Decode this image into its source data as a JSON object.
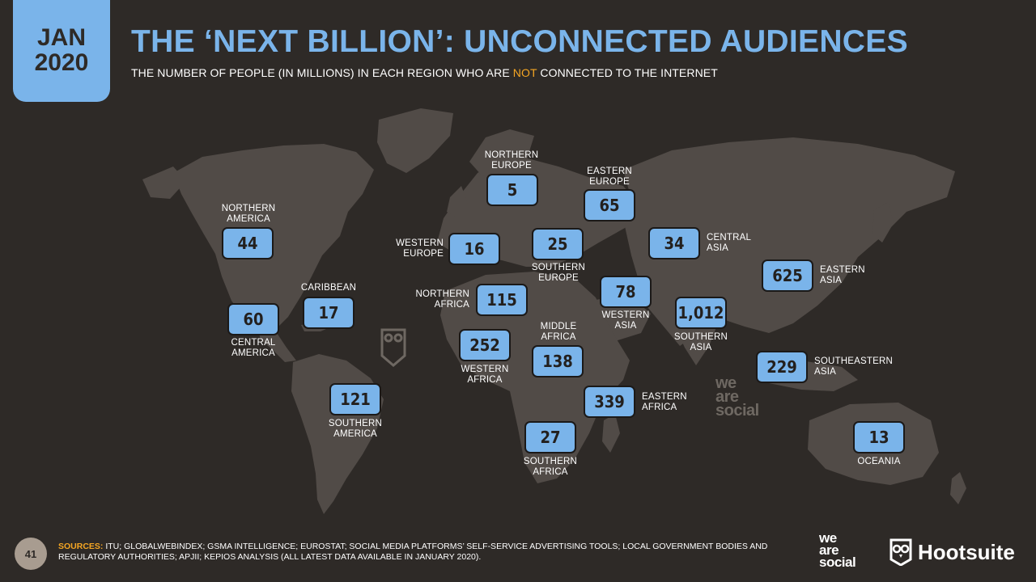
{
  "header": {
    "badge_month": "JAN",
    "badge_year": "2020",
    "title": "THE ‘NEXT BILLION’: UNCONNECTED AUDIENCES",
    "subtitle_pre": "THE NUMBER OF PEOPLE (IN MILLIONS) IN EACH REGION WHO ARE ",
    "subtitle_highlight": "NOT",
    "subtitle_post": " CONNECTED TO THE INTERNET"
  },
  "regions": {
    "northern_europe": {
      "label": "NORTHERN\nEUROPE",
      "value": "5"
    },
    "eastern_europe": {
      "label": "EASTERN\nEUROPE",
      "value": "65"
    },
    "northern_america": {
      "label": "NORTHERN\nAMERICA",
      "value": "44"
    },
    "western_europe": {
      "label": "WESTERN\nEUROPE",
      "value": "16"
    },
    "southern_europe": {
      "label": "SOUTHERN\nEUROPE",
      "value": "25"
    },
    "central_asia": {
      "label": "CENTRAL\nASIA",
      "value": "34"
    },
    "eastern_asia": {
      "label": "EASTERN\nASIA",
      "value": "625"
    },
    "caribbean": {
      "label": "CARIBBEAN",
      "value": "17"
    },
    "central_america": {
      "label": "CENTRAL\nAMERICA",
      "value": "60"
    },
    "northern_africa": {
      "label": "NORTHERN\nAFRICA",
      "value": "115"
    },
    "western_asia": {
      "label": "WESTERN\nASIA",
      "value": "78"
    },
    "southern_asia": {
      "label": "SOUTHERN\nASIA",
      "value": "1,012"
    },
    "middle_africa": {
      "label": "MIDDLE\nAFRICA",
      "value": "138"
    },
    "western_africa": {
      "label": "WESTERN\nAFRICA",
      "value": "252"
    },
    "southeastern_asia": {
      "label": "SOUTHEASTERN\nASIA",
      "value": "229"
    },
    "southern_america": {
      "label": "SOUTHERN\nAMERICA",
      "value": "121"
    },
    "eastern_africa": {
      "label": "EASTERN\nAFRICA",
      "value": "339"
    },
    "southern_africa": {
      "label": "SOUTHERN\nAFRICA",
      "value": "27"
    },
    "oceania": {
      "label": "OCEANIA",
      "value": "13"
    }
  },
  "footer": {
    "page_number": "41",
    "sources_label": "SOURCES:",
    "sources_text": " ITU; GLOBALWEBINDEX; GSMA INTELLIGENCE; EUROSTAT; SOCIAL MEDIA PLATFORMS’ SELF-SERVICE ADVERTISING TOOLS; LOCAL GOVERNMENT BODIES AND REGULATORY AUTHORITIES; APJII; KEPIOS ANALYSIS (ALL LATEST DATA AVAILABLE IN JANUARY 2020).",
    "logo_we_are_social": "we\nare\nsocial",
    "logo_hootsuite": "Hootsuite"
  },
  "colors": {
    "background": "#2e2a27",
    "accent_blue": "#7ab4ea",
    "highlight_orange": "#f5a623",
    "land": "#514b47"
  },
  "icons": [
    "owl-icon",
    "we-are-social-logo",
    "hootsuite-owl-icon"
  ]
}
